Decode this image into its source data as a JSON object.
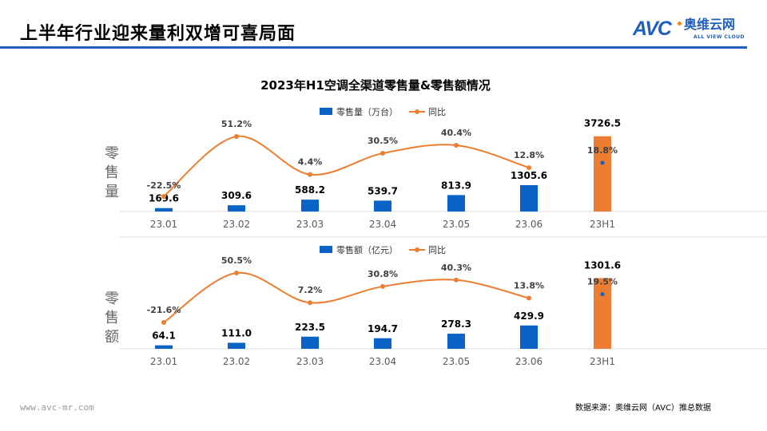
{
  "header": {
    "title": "上半年行业迎来量利双增可喜局面"
  },
  "logo": {
    "mark": "AVC",
    "cn": "奥维云网",
    "en": "ALL VIEW CLOUD"
  },
  "watermark": {
    "mark": "AVC",
    "cn": "奥维云网",
    "en": "ALL VIEW CLOUD"
  },
  "footer": {
    "url": "www.avc-mr.com",
    "source": "数据来源：奥维云网（AVC）推总数据"
  },
  "colors": {
    "bar_month": "#0a64c8",
    "bar_h1": "#ed7d31",
    "line": "#ed7d31",
    "dot_h1": "#0a64c8",
    "brand": "#1f5fbf"
  },
  "chart_data": [
    {
      "type": "bar+line",
      "title": "2023年H1空调全渠道零售量&零售额情况",
      "ylabel": "零售量",
      "legend": {
        "bar": "零售量（万台）",
        "line": "同比",
        "placement": "top"
      },
      "categories": [
        "23.01",
        "23.02",
        "23.03",
        "23.04",
        "23.05",
        "23.06",
        "23H1"
      ],
      "bar_values": [
        169.6,
        309.6,
        588.2,
        539.7,
        813.9,
        1305.6,
        3726.5
      ],
      "bar_labels": [
        "169.6",
        "309.6",
        "588.2",
        "539.7",
        "813.9",
        "1305.6",
        "3726.5"
      ],
      "yoy": [
        -22.5,
        51.2,
        4.4,
        30.5,
        40.4,
        12.8,
        18.8
      ],
      "yoy_labels": [
        "-22.5%",
        "51.2%",
        "4.4%",
        "30.5%",
        "40.4%",
        "12.8%",
        "18.8%"
      ]
    },
    {
      "type": "bar+line",
      "ylabel": "零售额",
      "legend": {
        "bar": "零售额（亿元）",
        "line": "同比",
        "placement": "top"
      },
      "categories": [
        "23.01",
        "23.02",
        "23.03",
        "23.04",
        "23.05",
        "23.06",
        "23H1"
      ],
      "bar_values": [
        64.1,
        111.0,
        223.5,
        194.7,
        278.3,
        429.9,
        1301.6
      ],
      "bar_labels": [
        "64.1",
        "111.0",
        "223.5",
        "194.7",
        "278.3",
        "429.9",
        "1301.6"
      ],
      "yoy": [
        -21.6,
        50.5,
        7.2,
        30.8,
        40.3,
        13.8,
        19.5
      ],
      "yoy_labels": [
        "-21.6%",
        "50.5%",
        "7.2%",
        "30.8%",
        "40.3%",
        "13.8%",
        "19.5%"
      ]
    }
  ]
}
